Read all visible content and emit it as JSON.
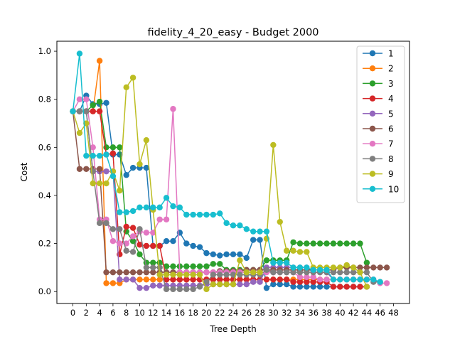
{
  "chart_data": {
    "type": "line",
    "title": "fidelity_4_20_easy - Budget  2000",
    "xlabel": "Tree Depth",
    "ylabel": "Cost",
    "xlim": [
      -2.4,
      50.4
    ],
    "ylim": [
      -0.0496,
      1.0416
    ],
    "xticks": [
      0,
      2,
      4,
      6,
      8,
      10,
      12,
      14,
      16,
      18,
      20,
      22,
      24,
      26,
      28,
      30,
      32,
      34,
      36,
      38,
      40,
      42,
      44,
      46,
      48
    ],
    "yticks": [
      0.0,
      0.2,
      0.4,
      0.6,
      0.8,
      1.0
    ],
    "ytick_labels": [
      "0.0",
      "0.2",
      "0.4",
      "0.6",
      "0.8",
      "1.0"
    ],
    "grid": false,
    "legend_position": "top-right",
    "series": [
      {
        "name": "1",
        "color": "#1f77b4",
        "x": [
          0,
          1,
          2,
          3,
          4,
          5,
          6,
          7,
          8,
          9,
          10,
          11,
          12,
          13,
          14,
          15,
          16,
          17,
          18,
          19,
          20,
          21,
          22,
          23,
          24,
          25,
          26,
          27,
          28,
          29,
          30,
          31,
          32,
          33,
          34,
          35,
          36,
          37,
          38,
          39,
          40,
          41,
          42,
          43,
          44
        ],
        "y": [
          0.75,
          0.75,
          0.815,
          0.78,
          0.78,
          0.785,
          0.57,
          0.57,
          0.485,
          0.515,
          0.515,
          0.515,
          0.19,
          0.19,
          0.21,
          0.21,
          0.245,
          0.2,
          0.19,
          0.185,
          0.16,
          0.155,
          0.15,
          0.155,
          0.155,
          0.155,
          0.14,
          0.215,
          0.215,
          0.015,
          0.03,
          0.03,
          0.03,
          0.02,
          0.02,
          0.02,
          0.02,
          0.02,
          0.02,
          0.02,
          0.02,
          0.02,
          0.02,
          0.02,
          0.02
        ]
      },
      {
        "name": "2",
        "color": "#ff7f0e",
        "x": [
          0,
          1,
          2,
          3,
          4,
          5,
          6,
          7,
          8,
          9,
          10,
          11,
          12,
          13,
          14,
          15,
          16,
          17,
          18,
          19,
          20,
          21,
          22,
          23,
          24,
          25,
          26,
          27,
          28,
          29,
          30,
          31,
          32,
          33,
          34,
          35,
          36,
          37,
          38,
          39,
          40,
          41,
          42,
          43,
          44
        ],
        "y": [
          0.75,
          0.75,
          0.75,
          0.75,
          0.96,
          0.035,
          0.035,
          0.035,
          0.05,
          0.05,
          0.05,
          0.05,
          0.05,
          0.05,
          0.05,
          0.05,
          0.05,
          0.05,
          0.05,
          0.05,
          0.05,
          0.05,
          0.05,
          0.05,
          0.05,
          0.05,
          0.05,
          0.05,
          0.05,
          0.05,
          0.05,
          0.05,
          0.05,
          0.05,
          0.05,
          0.05,
          0.05,
          0.05,
          0.05,
          0.05,
          0.05,
          0.05,
          0.05,
          0.05,
          0.05
        ]
      },
      {
        "name": "3",
        "color": "#2ca02c",
        "x": [
          0,
          1,
          2,
          3,
          4,
          5,
          6,
          7,
          8,
          9,
          10,
          11,
          12,
          13,
          14,
          15,
          16,
          17,
          18,
          19,
          20,
          21,
          22,
          23,
          24,
          25,
          26,
          27,
          28,
          29,
          30,
          31,
          32,
          33,
          34,
          35,
          36,
          37,
          38,
          39,
          40,
          41,
          42,
          43,
          44
        ],
        "y": [
          0.75,
          0.75,
          0.75,
          0.775,
          0.79,
          0.6,
          0.6,
          0.6,
          0.25,
          0.21,
          0.155,
          0.12,
          0.12,
          0.12,
          0.105,
          0.105,
          0.105,
          0.105,
          0.105,
          0.105,
          0.105,
          0.115,
          0.115,
          0.09,
          0.09,
          0.09,
          0.09,
          0.09,
          0.09,
          0.13,
          0.13,
          0.13,
          0.13,
          0.205,
          0.2,
          0.2,
          0.2,
          0.2,
          0.2,
          0.2,
          0.2,
          0.2,
          0.2,
          0.2,
          0.12
        ]
      },
      {
        "name": "4",
        "color": "#d62728",
        "x": [
          0,
          1,
          2,
          3,
          4,
          5,
          6,
          7,
          8,
          9,
          10,
          11,
          12,
          13,
          14,
          15,
          16,
          17,
          18,
          19,
          20,
          21,
          22,
          23,
          24,
          25,
          26,
          27,
          28,
          29,
          30,
          31,
          32,
          33,
          34,
          35,
          36,
          37,
          38,
          39,
          40,
          41,
          42,
          43,
          44
        ],
        "y": [
          0.75,
          0.75,
          0.75,
          0.75,
          0.75,
          0.57,
          0.575,
          0.155,
          0.27,
          0.265,
          0.195,
          0.19,
          0.19,
          0.19,
          0.05,
          0.05,
          0.05,
          0.05,
          0.05,
          0.05,
          0.05,
          0.05,
          0.05,
          0.05,
          0.05,
          0.05,
          0.05,
          0.05,
          0.05,
          0.05,
          0.05,
          0.05,
          0.05,
          0.04,
          0.04,
          0.04,
          0.04,
          0.04,
          0.04,
          0.02,
          0.02,
          0.02,
          0.02,
          0.02,
          0.02
        ]
      },
      {
        "name": "5",
        "color": "#9467bd",
        "x": [
          0,
          1,
          2,
          3,
          4,
          5,
          6,
          7,
          8,
          9,
          10,
          11,
          12,
          13,
          14,
          15,
          16,
          17,
          18,
          19,
          20,
          21,
          22,
          23,
          24,
          25,
          26,
          27,
          28,
          29,
          30,
          31,
          32,
          33,
          34,
          35,
          36,
          37,
          38,
          39,
          40,
          41,
          42,
          43,
          44
        ],
        "y": [
          0.75,
          0.75,
          0.75,
          0.5,
          0.5,
          0.5,
          0.5,
          0.05,
          0.05,
          0.05,
          0.015,
          0.015,
          0.025,
          0.025,
          0.025,
          0.025,
          0.025,
          0.025,
          0.025,
          0.025,
          0.03,
          0.03,
          0.03,
          0.03,
          0.03,
          0.03,
          0.03,
          0.04,
          0.04,
          0.1,
          0.1,
          0.1,
          0.1,
          0.1,
          0.1,
          0.1,
          0.08,
          0.08,
          0.08,
          0.05,
          0.05,
          0.05,
          0.05,
          0.05,
          0.05
        ]
      },
      {
        "name": "6",
        "color": "#8c564b",
        "x": [
          0,
          1,
          2,
          3,
          4,
          5,
          6,
          7,
          8,
          9,
          10,
          11,
          12,
          13,
          14,
          15,
          16,
          17,
          18,
          19,
          20,
          21,
          22,
          23,
          24,
          25,
          26,
          27,
          28,
          29,
          30,
          31,
          32,
          33,
          34,
          35,
          36,
          37,
          38,
          39,
          40,
          41,
          42,
          43,
          44,
          45,
          46,
          47
        ],
        "y": [
          0.75,
          0.51,
          0.51,
          0.51,
          0.51,
          0.08,
          0.08,
          0.08,
          0.08,
          0.08,
          0.08,
          0.08,
          0.08,
          0.08,
          0.08,
          0.08,
          0.08,
          0.08,
          0.08,
          0.08,
          0.08,
          0.08,
          0.085,
          0.085,
          0.085,
          0.085,
          0.09,
          0.09,
          0.09,
          0.09,
          0.09,
          0.09,
          0.09,
          0.09,
          0.09,
          0.09,
          0.09,
          0.09,
          0.09,
          0.09,
          0.1,
          0.1,
          0.1,
          0.1,
          0.1,
          0.1,
          0.1,
          0.1
        ]
      },
      {
        "name": "7",
        "color": "#e377c2",
        "x": [
          0,
          1,
          2,
          3,
          4,
          5,
          6,
          7,
          8,
          9,
          10,
          11,
          12,
          13,
          14,
          15,
          16,
          17,
          18,
          19,
          20,
          21,
          22,
          23,
          24,
          25,
          26,
          27,
          28,
          29,
          30,
          31,
          32,
          33,
          34,
          35,
          36,
          37,
          38,
          39,
          40,
          41,
          42,
          43,
          44,
          45,
          46,
          47
        ],
        "y": [
          0.75,
          0.8,
          0.8,
          0.6,
          0.3,
          0.3,
          0.21,
          0.2,
          0.2,
          0.23,
          0.25,
          0.245,
          0.245,
          0.3,
          0.3,
          0.76,
          0.08,
          0.08,
          0.08,
          0.08,
          0.08,
          0.08,
          0.08,
          0.08,
          0.08,
          0.08,
          0.08,
          0.08,
          0.08,
          0.08,
          0.08,
          0.08,
          0.08,
          0.08,
          0.06,
          0.06,
          0.06,
          0.05,
          0.05,
          0.05,
          0.05,
          0.05,
          0.05,
          0.05,
          0.05,
          0.05,
          0.035,
          0.035
        ]
      },
      {
        "name": "8",
        "color": "#7f7f7f",
        "x": [
          0,
          1,
          2,
          3,
          4,
          5,
          6,
          7,
          8,
          9,
          10,
          11,
          12,
          13,
          14,
          15,
          16,
          17,
          18,
          19,
          20,
          21,
          22,
          23,
          24,
          25,
          26,
          27,
          28,
          29,
          30,
          31,
          32,
          33,
          34,
          35,
          36,
          37,
          38,
          39,
          40,
          41,
          42,
          43,
          44,
          45,
          46
        ],
        "y": [
          0.75,
          0.75,
          0.75,
          0.5,
          0.285,
          0.285,
          0.26,
          0.26,
          0.17,
          0.165,
          0.26,
          0.1,
          0.1,
          0.1,
          0.01,
          0.01,
          0.01,
          0.01,
          0.01,
          0.02,
          0.04,
          0.07,
          0.07,
          0.07,
          0.07,
          0.07,
          0.07,
          0.07,
          0.07,
          0.09,
          0.08,
          0.08,
          0.08,
          0.08,
          0.08,
          0.08,
          0.08,
          0.08,
          0.08,
          0.08,
          0.08,
          0.08,
          0.08,
          0.08,
          0.08,
          0.04,
          0.04
        ]
      },
      {
        "name": "9",
        "color": "#bcbd22",
        "x": [
          0,
          1,
          2,
          3,
          4,
          5,
          6,
          7,
          8,
          9,
          10,
          11,
          12,
          13,
          14,
          15,
          16,
          17,
          18,
          19,
          20,
          21,
          22,
          23,
          24,
          25,
          26,
          27,
          28,
          29,
          30,
          31,
          32,
          33,
          34,
          35,
          36,
          37,
          38,
          39,
          40,
          41,
          42,
          43,
          44
        ],
        "y": [
          0.75,
          0.66,
          0.7,
          0.45,
          0.45,
          0.45,
          0.5,
          0.42,
          0.85,
          0.89,
          0.53,
          0.63,
          0.34,
          0.07,
          0.07,
          0.07,
          0.07,
          0.07,
          0.07,
          0.07,
          0.01,
          0.03,
          0.03,
          0.03,
          0.03,
          0.13,
          0.08,
          0.08,
          0.08,
          0.22,
          0.61,
          0.29,
          0.17,
          0.17,
          0.165,
          0.165,
          0.1,
          0.1,
          0.1,
          0.1,
          0.1,
          0.11,
          0.1,
          0.08,
          0.02
        ]
      },
      {
        "name": "10",
        "color": "#17becf",
        "x": [
          0,
          1,
          2,
          3,
          4,
          5,
          6,
          7,
          8,
          9,
          10,
          11,
          12,
          13,
          14,
          15,
          16,
          17,
          18,
          19,
          20,
          21,
          22,
          23,
          24,
          25,
          26,
          27,
          28,
          29,
          30,
          31,
          32,
          33,
          34,
          35,
          36,
          37,
          38,
          39,
          40,
          41,
          42,
          43,
          44,
          45,
          46
        ],
        "y": [
          0.75,
          0.99,
          0.565,
          0.565,
          0.565,
          0.57,
          0.48,
          0.33,
          0.33,
          0.335,
          0.35,
          0.35,
          0.35,
          0.35,
          0.39,
          0.355,
          0.35,
          0.32,
          0.32,
          0.32,
          0.32,
          0.32,
          0.325,
          0.285,
          0.275,
          0.275,
          0.26,
          0.25,
          0.25,
          0.25,
          0.12,
          0.12,
          0.12,
          0.1,
          0.1,
          0.1,
          0.09,
          0.09,
          0.09,
          0.05,
          0.05,
          0.05,
          0.05,
          0.05,
          0.05,
          0.05,
          0.04
        ]
      }
    ]
  }
}
